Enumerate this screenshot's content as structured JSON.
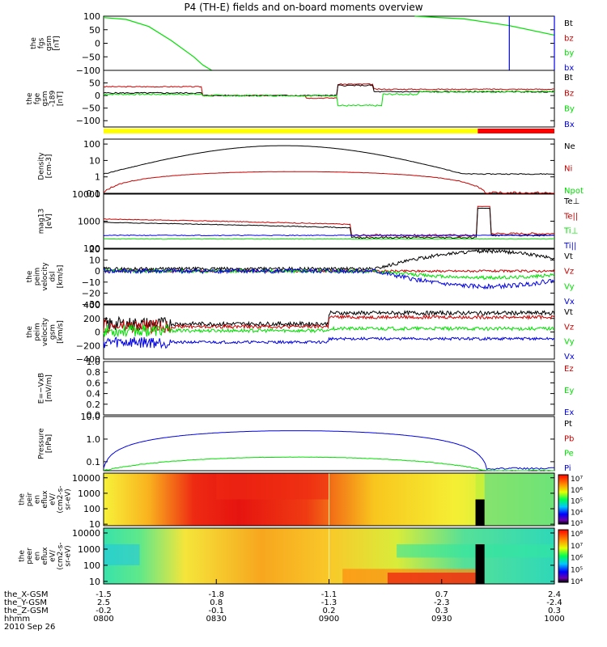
{
  "chart_data": {
    "type": "line",
    "title": "P4 (TH-E) fields and on-board moments overview",
    "date": "2010 Sep 26",
    "colors": {
      "black": "#000000",
      "red": "#c80000",
      "green": "#00e000",
      "blue": "#0000e6",
      "sky": "#00c8ff"
    },
    "time_axis": {
      "label": "hhmm",
      "range": [
        "0800",
        "1000"
      ],
      "ticks": [
        "0800",
        "0830",
        "0900",
        "0930",
        "1000"
      ]
    },
    "ephemeris": [
      {
        "label": "the_X-GSM",
        "values": [
          "-1.5",
          "-1.8",
          "-1.1",
          "0.7",
          "2.4"
        ]
      },
      {
        "label": "the_Y-GSM",
        "values": [
          "2.5",
          "0.8",
          "-1.3",
          "-2.3",
          "-2.4"
        ]
      },
      {
        "label": "the_Z-GSM",
        "values": [
          "-0.2",
          "-0.1",
          "0.2",
          "0.3",
          "0.3"
        ]
      }
    ],
    "panels": [
      {
        "name": "fgs",
        "ylabel": [
          "the",
          "fgs",
          "gsm",
          "[nT]"
        ],
        "ylim": [
          -100,
          100
        ],
        "yticks": [
          "100",
          "50",
          "0",
          "−50",
          "−100"
        ],
        "legend": [
          "Bt",
          "bz",
          "by",
          "bx"
        ],
        "series": [
          {
            "name": "by",
            "color": "green",
            "points": [
              [
                0,
                95
              ],
              [
                0.05,
                88
              ],
              [
                0.1,
                62
              ],
              [
                0.15,
                10
              ],
              [
                0.2,
                -50
              ],
              [
                0.22,
                -80
              ],
              [
                0.24,
                -100
              ]
            ]
          },
          {
            "name": "by",
            "color": "green",
            "points": [
              [
                0.69,
                100
              ],
              [
                0.8,
                90
              ],
              [
                0.9,
                65
              ],
              [
                1,
                30
              ]
            ]
          },
          {
            "name": "bx",
            "color": "blue",
            "points": [
              [
                0.9,
                -100
              ],
              [
                0.9,
                100
              ]
            ]
          },
          {
            "name": "bx",
            "color": "blue",
            "points": [
              [
                1,
                -100
              ],
              [
                1,
                100
              ]
            ]
          }
        ]
      },
      {
        "name": "fge",
        "ylabel": [
          "the",
          "fge",
          "gsm",
          "-189",
          "[nT]"
        ],
        "ylim": [
          -125,
          100
        ],
        "yticks": [
          "50",
          "0",
          "−50",
          "−100"
        ],
        "legend": [
          "Bt",
          "Bz",
          "By",
          "Bx"
        ]
      },
      {
        "name": "mode_bar",
        "segments": [
          {
            "from": 0,
            "to": 0.83,
            "color": "yellow"
          },
          {
            "from": 0.83,
            "to": 1,
            "color": "red"
          }
        ]
      },
      {
        "name": "density",
        "ylabel": [
          "Density",
          "[cm-3]"
        ],
        "scale": "log",
        "ylim": [
          0.1,
          200
        ],
        "yticks": [
          "100",
          "10",
          "1",
          "0.1"
        ],
        "legend": [
          "Ne",
          "Ni",
          "Npot"
        ]
      },
      {
        "name": "temperature",
        "ylabel": [
          "mag13",
          "[eV]"
        ],
        "scale": "log",
        "ylim": [
          100,
          10000
        ],
        "yticks": [
          "10000",
          "1000",
          "100"
        ],
        "legend": [
          "Te⊥",
          "Te||",
          "Ti⊥",
          "Ti||"
        ]
      },
      {
        "name": "velocity_dsl",
        "ylabel": [
          "the",
          "peim",
          "velocity",
          "dsl",
          "[km/s]"
        ],
        "ylim": [
          -30,
          20
        ],
        "yticks": [
          "20",
          "10",
          "0",
          "−10",
          "−20",
          "−30"
        ],
        "legend": [
          "Vt",
          "Vz",
          "Vy",
          "Vx"
        ]
      },
      {
        "name": "velocity_gsm",
        "ylabel": [
          "the",
          "peim",
          "velocity",
          "gsm",
          "[km/s]"
        ],
        "ylim": [
          -400,
          400
        ],
        "yticks": [
          "400",
          "200",
          "0",
          "−200",
          "−400"
        ],
        "legend": [
          "Vt",
          "Vz",
          "Vy",
          "Vx"
        ]
      },
      {
        "name": "efield",
        "ylabel": [
          "E=−VxB",
          "[mV/m]"
        ],
        "ylim": [
          0,
          1
        ],
        "yticks": [
          "1.0",
          "0.8",
          "0.6",
          "0.4",
          "0.2",
          "0.0"
        ],
        "legend": [
          "Ez",
          "Ey",
          "Ex"
        ]
      },
      {
        "name": "pressure",
        "ylabel": [
          "Pressure",
          "[nPa]"
        ],
        "scale": "log",
        "ylim": [
          0.04,
          10
        ],
        "yticks": [
          "10.0",
          "1.0",
          "0.1"
        ],
        "legend": [
          "Pt",
          "Pb",
          "Pe",
          "Pi"
        ]
      },
      {
        "name": "ion_spec",
        "type": "heatmap",
        "ylabel": [
          "the",
          "peir",
          "en",
          "eflux",
          "eV/",
          "(cm2-s-",
          "sr-eV)"
        ],
        "scale": "log",
        "ylim": [
          8,
          20000
        ],
        "yticks": [
          "10000",
          "1000",
          "100",
          "10"
        ],
        "colorbar": [
          "10⁷",
          "10⁶",
          "10⁵",
          "10⁴",
          "10³"
        ]
      },
      {
        "name": "electron_spec",
        "type": "heatmap",
        "ylabel": [
          "the",
          "peer",
          "en",
          "eflux",
          "eV/",
          "(cm2-s-",
          "sr-eV)"
        ],
        "scale": "log",
        "ylim": [
          7,
          20000
        ],
        "yticks": [
          "10000",
          "1000",
          "100",
          "10"
        ],
        "colorbar": [
          "10⁸",
          "10⁷",
          "10⁶",
          "10⁵",
          "10⁴"
        ]
      }
    ]
  }
}
